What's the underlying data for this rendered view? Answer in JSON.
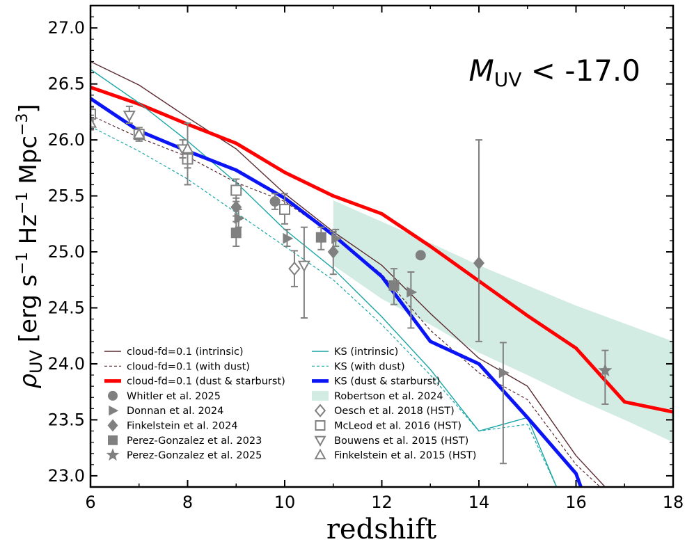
{
  "chart_data": {
    "type": "line",
    "xlabel": "redshift",
    "ylabel": {
      "rho": "ρ",
      "rho_sub": "UV",
      "unit_open": " [erg s",
      "exp1": "−1",
      "hz": " Hz",
      "exp2": "−1",
      "mpc": " Mpc",
      "exp3": "−3",
      "close": "]"
    },
    "annotation": {
      "m": "M",
      "sub": "UV",
      "rest": " < -17.0"
    },
    "xlim": [
      6,
      18
    ],
    "ylim": [
      22.9,
      27.2
    ],
    "xticks": [
      6,
      8,
      10,
      12,
      14,
      16,
      18
    ],
    "xtick_labels": [
      "6",
      "8",
      "10",
      "12",
      "14",
      "16",
      "18"
    ],
    "yticks": [
      23.0,
      23.5,
      24.0,
      24.5,
      25.0,
      25.5,
      26.0,
      26.5,
      27.0
    ],
    "ytick_labels": [
      "23.0",
      "23.5",
      "24.0",
      "24.5",
      "25.0",
      "25.5",
      "26.0",
      "26.5",
      "27.0"
    ],
    "colors": {
      "cloud": "#5a2a30",
      "ks": "#19a5a5",
      "red": "#ff0000",
      "blue": "#0a14f5",
      "obs": "#808080",
      "band": "#d3ece3"
    },
    "series": [
      {
        "name": "cloud-fd=0.1 (intrinsic)",
        "style": "cloud-solid",
        "x": [
          6,
          7,
          8,
          9,
          10,
          11,
          12,
          13,
          14,
          15,
          16,
          16.6
        ],
        "y": [
          26.7,
          26.49,
          26.2,
          25.92,
          25.52,
          25.18,
          24.88,
          24.45,
          24.05,
          23.8,
          23.18,
          22.9
        ]
      },
      {
        "name": "cloud-fd=0.1 (with dust)",
        "style": "cloud-dashed",
        "x": [
          6,
          7,
          8,
          9,
          10,
          11,
          12,
          13,
          14,
          15,
          16,
          16.5
        ],
        "y": [
          26.22,
          26.02,
          25.85,
          25.62,
          25.45,
          25.15,
          24.8,
          24.3,
          23.92,
          23.68,
          23.1,
          22.9
        ]
      },
      {
        "name": "cloud-fd=0.1 (dust & starburst)",
        "style": "red-thick",
        "x": [
          6,
          7,
          8,
          9,
          10,
          11,
          12,
          13,
          14,
          15,
          16,
          17,
          18
        ],
        "y": [
          26.47,
          26.32,
          26.14,
          25.97,
          25.71,
          25.5,
          25.34,
          25.05,
          24.74,
          24.43,
          24.14,
          23.66,
          23.57
        ]
      },
      {
        "name": "KS (intrinsic)",
        "style": "ks-solid",
        "x": [
          6,
          7,
          8,
          9,
          10,
          11,
          12,
          13,
          14,
          15,
          15.6
        ],
        "y": [
          26.63,
          26.33,
          25.99,
          25.62,
          25.2,
          24.85,
          24.42,
          23.95,
          23.4,
          23.52,
          22.9
        ]
      },
      {
        "name": "KS (with dust)",
        "style": "ks-dashed",
        "x": [
          6,
          7,
          8,
          9,
          10,
          11,
          12,
          13,
          14,
          15,
          15.6
        ],
        "y": [
          26.12,
          25.9,
          25.65,
          25.35,
          25.05,
          24.75,
          24.35,
          23.9,
          23.4,
          23.46,
          22.9
        ]
      },
      {
        "name": "KS (dust & starburst)",
        "style": "blue-thick",
        "x": [
          6,
          7,
          8,
          9,
          10,
          11,
          12,
          13,
          14,
          15,
          16,
          16.1
        ],
        "y": [
          26.37,
          26.08,
          25.9,
          25.73,
          25.48,
          25.15,
          24.78,
          24.2,
          24.0,
          23.52,
          23.02,
          22.9
        ]
      }
    ],
    "band": {
      "name": "Robertson et al. 2024",
      "x": [
        11,
        12,
        13,
        14,
        15,
        16,
        17,
        18
      ],
      "upper": [
        25.46,
        25.27,
        25.08,
        24.88,
        24.7,
        24.52,
        24.36,
        24.2
      ],
      "lower": [
        24.88,
        24.58,
        24.35,
        24.1,
        23.9,
        23.69,
        23.5,
        23.3
      ]
    },
    "observations": [
      {
        "name": "Whitler et al. 2025",
        "marker": "circle",
        "filled": true,
        "points": [
          {
            "x": 9.8,
            "y": 25.45,
            "err_lo": 25.38,
            "err_hi": 25.52
          },
          {
            "x": 12.8,
            "y": 24.97
          }
        ]
      },
      {
        "name": "Donnan et al. 2024",
        "marker": "triangle-right",
        "filled": true,
        "points": [
          {
            "x": 9.05,
            "y": 25.3,
            "err_lo": 25.22,
            "err_hi": 25.38
          },
          {
            "x": 10.05,
            "y": 25.12,
            "err_lo": 25.05,
            "err_hi": 25.2
          },
          {
            "x": 11.05,
            "y": 25.12,
            "err_lo": 25.05,
            "err_hi": 25.2
          },
          {
            "x": 12.6,
            "y": 24.64,
            "err_lo": 24.32,
            "err_hi": 24.82
          },
          {
            "x": 14.5,
            "y": 23.92,
            "err_lo": 23.11,
            "err_hi": 24.19
          }
        ]
      },
      {
        "name": "Finkelstein et al. 2024",
        "marker": "diamond",
        "filled": true,
        "points": [
          {
            "x": 9.0,
            "y": 25.4,
            "err_lo": 25.32,
            "err_hi": 25.48
          },
          {
            "x": 11.0,
            "y": 25.0,
            "err_lo": 24.8,
            "err_hi": 25.18
          },
          {
            "x": 14.0,
            "y": 24.9,
            "err_lo": 24.2,
            "err_hi": 26.0
          }
        ]
      },
      {
        "name": "Perez-Gonzalez et al. 2023",
        "marker": "square",
        "filled": true,
        "points": [
          {
            "x": 9.0,
            "y": 25.17,
            "err_lo": 25.05,
            "err_hi": 25.27
          },
          {
            "x": 10.75,
            "y": 25.13,
            "err_lo": 25.02,
            "err_hi": 25.22
          },
          {
            "x": 12.25,
            "y": 24.7,
            "err_lo": 24.53,
            "err_hi": 24.85
          }
        ]
      },
      {
        "name": "Perez-Gonzalez et al. 2025",
        "marker": "star",
        "filled": true,
        "points": [
          {
            "x": 16.6,
            "y": 23.94,
            "err_lo": 23.64,
            "err_hi": 24.12
          }
        ]
      },
      {
        "name": "Oesch et al. 2018 (HST)",
        "marker": "diamond",
        "filled": false,
        "points": [
          {
            "x": 10.2,
            "y": 24.85,
            "err_lo": 24.69,
            "err_hi": 25.01
          }
        ]
      },
      {
        "name": "McLeod et al. 2016 (HST)",
        "marker": "square",
        "filled": false,
        "points": [
          {
            "x": 6.0,
            "y": 26.23,
            "err_lo": 26.17,
            "err_hi": 26.29
          },
          {
            "x": 7.0,
            "y": 26.05,
            "err_lo": 25.99,
            "err_hi": 26.11
          },
          {
            "x": 8.0,
            "y": 25.83,
            "err_lo": 25.75,
            "err_hi": 25.91
          },
          {
            "x": 9.0,
            "y": 25.55,
            "err_lo": 25.45,
            "err_hi": 25.65
          },
          {
            "x": 10.0,
            "y": 25.38,
            "err_lo": 25.25,
            "err_hi": 25.52
          }
        ]
      },
      {
        "name": "Bouwens et al. 2015 (HST)",
        "marker": "triangle-down",
        "filled": false,
        "points": [
          {
            "x": 6.8,
            "y": 26.22,
            "err_lo": 26.15,
            "err_hi": 26.3
          },
          {
            "x": 7.9,
            "y": 25.92,
            "err_lo": 25.84,
            "err_hi": 26.0
          },
          {
            "x": 10.4,
            "y": 24.88,
            "err_lo": 24.41,
            "err_hi": 25.22
          }
        ]
      },
      {
        "name": "Finkelstein et al. 2015 (HST)",
        "marker": "triangle-up",
        "filled": false,
        "points": [
          {
            "x": 6.0,
            "y": 26.15,
            "err_lo": 26.09,
            "err_hi": 26.22
          },
          {
            "x": 7.0,
            "y": 26.05,
            "err_lo": 25.99,
            "err_hi": 26.11
          },
          {
            "x": 8.0,
            "y": 25.92,
            "err_lo": 25.6,
            "err_hi": 26.15
          }
        ]
      }
    ],
    "legend": {
      "placement": "lower-left",
      "col1": [
        {
          "label": "cloud-fd=0.1 (intrinsic)",
          "kind": "line",
          "style": "cloud-solid"
        },
        {
          "label": "cloud-fd=0.1 (with dust)",
          "kind": "line",
          "style": "cloud-dashed"
        },
        {
          "label": "cloud-fd=0.1 (dust & starburst)",
          "kind": "line",
          "style": "red-thick"
        },
        {
          "label": "Whitler et al. 2025",
          "kind": "marker",
          "marker": "circle",
          "filled": true
        },
        {
          "label": "Donnan et al. 2024",
          "kind": "marker",
          "marker": "triangle-right",
          "filled": true
        },
        {
          "label": "Finkelstein et al. 2024",
          "kind": "marker",
          "marker": "diamond",
          "filled": true
        },
        {
          "label": "Perez-Gonzalez et al. 2023",
          "kind": "marker",
          "marker": "square",
          "filled": true
        },
        {
          "label": "Perez-Gonzalez et al. 2025",
          "kind": "marker",
          "marker": "star",
          "filled": true
        }
      ],
      "col2": [
        {
          "label": "KS (intrinsic)",
          "kind": "line",
          "style": "ks-solid"
        },
        {
          "label": "KS (with dust)",
          "kind": "line",
          "style": "ks-dashed"
        },
        {
          "label": "KS (dust & starburst)",
          "kind": "line",
          "style": "blue-thick"
        },
        {
          "label": "Robertson et al. 2024",
          "kind": "band"
        },
        {
          "label": "Oesch et al. 2018 (HST)",
          "kind": "marker",
          "marker": "diamond",
          "filled": false
        },
        {
          "label": "McLeod et al. 2016 (HST)",
          "kind": "marker",
          "marker": "square",
          "filled": false
        },
        {
          "label": "Bouwens et al. 2015 (HST)",
          "kind": "marker",
          "marker": "triangle-down",
          "filled": false
        },
        {
          "label": "Finkelstein et al. 2015 (HST)",
          "kind": "marker",
          "marker": "triangle-up",
          "filled": false
        }
      ]
    }
  }
}
